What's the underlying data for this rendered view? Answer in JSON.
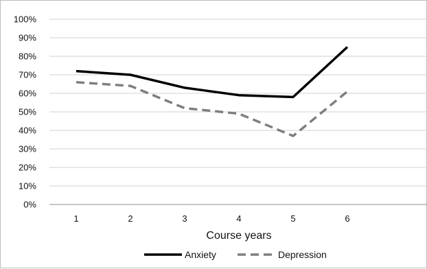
{
  "chart_data": {
    "type": "line",
    "title": "",
    "xlabel": "Course years",
    "ylabel": "",
    "categories": [
      "1",
      "2",
      "3",
      "4",
      "5",
      "6"
    ],
    "y_ticks": [
      "0%",
      "10%",
      "20%",
      "30%",
      "40%",
      "50%",
      "60%",
      "70%",
      "80%",
      "90%",
      "100%"
    ],
    "ylim": [
      0,
      100
    ],
    "grid": "horizontal",
    "legend_position": "bottom",
    "series": [
      {
        "name": "Anxiety",
        "values": [
          72,
          70,
          63,
          59,
          58,
          85
        ],
        "color": "#000000",
        "dash": "solid"
      },
      {
        "name": "Depression",
        "values": [
          66,
          64,
          52,
          49,
          37,
          61
        ],
        "color": "#7f7f7f",
        "dash": "dashed"
      }
    ]
  }
}
